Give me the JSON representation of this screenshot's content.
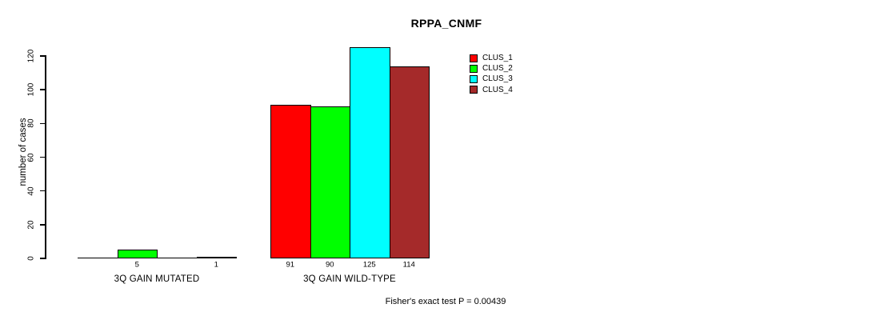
{
  "chart_data": {
    "type": "bar",
    "title": "RPPA_CNMF",
    "ylabel": "number of cases",
    "xlabel": "",
    "ylim": [
      0,
      120
    ],
    "yticks": [
      0,
      20,
      40,
      60,
      80,
      100,
      120
    ],
    "grid": false,
    "categories": [
      "3Q GAIN MUTATED",
      "3Q GAIN WILD-TYPE"
    ],
    "series": [
      {
        "name": "CLUS_1",
        "color": "#FF0000",
        "values": [
          0,
          91
        ]
      },
      {
        "name": "CLUS_2",
        "color": "#00FF00",
        "values": [
          5,
          90
        ]
      },
      {
        "name": "CLUS_3",
        "color": "#00FFFF",
        "values": [
          0,
          125
        ]
      },
      {
        "name": "CLUS_4",
        "color": "#A52A2A",
        "values": [
          1,
          114
        ]
      }
    ],
    "bar_value_labels": [
      [
        "",
        "5",
        "",
        "1"
      ],
      [
        "91",
        "90",
        "125",
        "114"
      ]
    ],
    "legend": {
      "position": "top-right",
      "entries": [
        "CLUS_1",
        "CLUS_2",
        "CLUS_3",
        "CLUS_4"
      ]
    },
    "annotation": "Fisher's exact test P = 0.00439"
  }
}
